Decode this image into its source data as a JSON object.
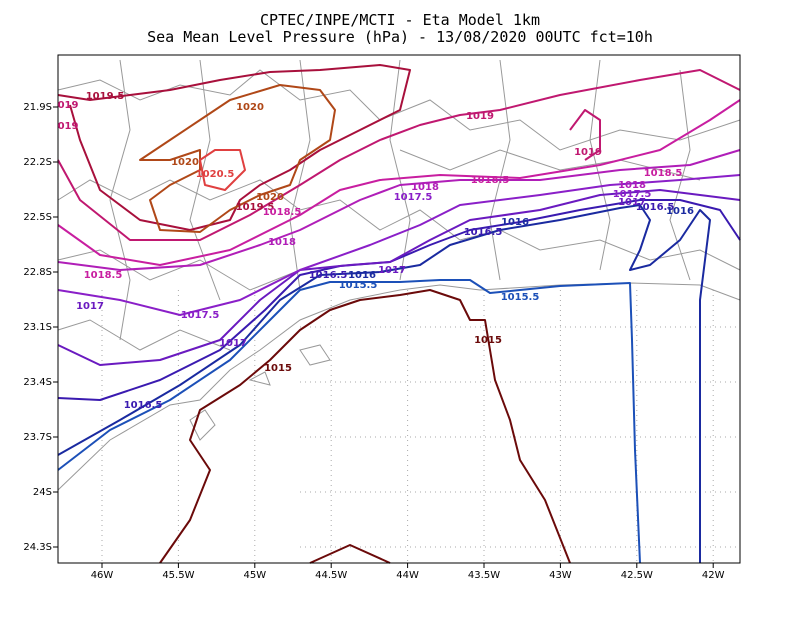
{
  "map": {
    "title": [
      "CPTEC/INPE/MCTI -  Eta Model 1km",
      "Sea Mean Level Pressure (hPa) - 13/08/2020 00UTC fct=10h"
    ],
    "lon_ticks": [
      "46W",
      "45.5W",
      "45W",
      "44.5W",
      "44W",
      "43.5W",
      "43W",
      "42.5W",
      "42W"
    ],
    "lat_ticks": [
      "21.9S",
      "22.2S",
      "22.5S",
      "22.8S",
      "23.1S",
      "23.4S",
      "23.7S",
      "24S",
      "24.3S"
    ],
    "contour_labels": [
      "1019.5",
      "019",
      "019",
      "1020",
      "1020",
      "1020.5",
      "1020",
      "1019.5",
      "1018.5",
      "1019",
      "1019",
      "1018",
      "1017.5",
      "1018.5",
      "1018.5",
      "1018",
      "1017.5",
      "1017",
      "1016.5",
      "1016",
      "1016",
      "1016.5",
      "1018",
      "1018.5",
      "1017",
      "1017.5",
      "1017",
      "1016.5",
      "1016",
      "1015.5",
      "1017",
      "1015.5",
      "1015",
      "1015",
      "1016.5"
    ]
  }
}
